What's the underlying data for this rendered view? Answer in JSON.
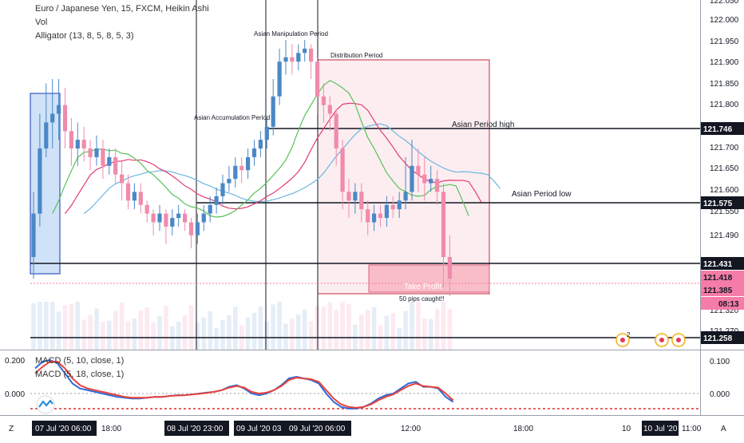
{
  "header": {
    "symbol": "Euro / Japanese Yen, 15, FXCM, Heikin Ashi",
    "vol": "Vol",
    "alligator": "Alligator (13, 8, 5, 8, 5, 3)"
  },
  "macd_legend": {
    "line1": "MACD (5, 10, close, 1)",
    "line2": "MACD (5, 18, close, 1)"
  },
  "annotations": {
    "asian_manipulation": "Asian Manipulation Period",
    "distribution": "Distribution Period",
    "asian_accumulation": "Asian Accumulation Period",
    "asian_high": "Asian Period high",
    "asian_low": "Asian Period low",
    "take_profit": "Take Profit",
    "pips": "50 pips caught!!"
  },
  "price_axis": {
    "ticks": [
      "122.050",
      "122.000",
      "121.950",
      "121.900",
      "121.850",
      "121.800",
      "121.700",
      "121.650",
      "121.600",
      "121.550",
      "121.490",
      "121.320",
      "121.270"
    ],
    "tags": [
      {
        "label": "121.746",
        "type": "dark"
      },
      {
        "label": "121.575",
        "type": "dark"
      },
      {
        "label": "121.431",
        "type": "dark"
      },
      {
        "label": "121.418",
        "type": "pink"
      },
      {
        "label": "121.385",
        "type": "pink"
      },
      {
        "label": "08:13",
        "type": "pink"
      },
      {
        "label": "121.258",
        "type": "dark"
      }
    ]
  },
  "macd_axis": {
    "left": [
      "0.200",
      "0.000"
    ],
    "right": [
      "0.100",
      "0.000"
    ]
  },
  "time_axis": {
    "left_button": "Z",
    "right_button": "A",
    "labels": [
      "18:00",
      "12:00",
      "18:00",
      "10",
      "11:00"
    ],
    "highlights": [
      "07 Jul '20  06:00",
      "08 Jul '20  23:00",
      "09 Jul '20  03",
      "09 Jul '20  06:00",
      "10 Jul '20"
    ]
  },
  "markers": {
    "badge": "2"
  },
  "colors": {
    "bull": "#4a88c6",
    "bear": "#f08bab",
    "jaw": "#6ab7e0",
    "teeth": "#e23b73",
    "lips": "#58c25a",
    "macd": "#2e6ad8",
    "signal": "#e8423a",
    "tag_dark": "#131722",
    "tag_pink": "#f47ca6"
  },
  "chart_data": {
    "type": "candlestick",
    "symbol": "EURJPY",
    "timeframe": "15",
    "style": "Heikin Ashi",
    "levels": [
      {
        "name": "Asian Period high",
        "value": 121.746
      },
      {
        "name": "Asian Period low",
        "value": 121.575
      },
      {
        "value": 121.431
      },
      {
        "value": 121.258
      }
    ],
    "current_prices": [
      121.418,
      121.385
    ],
    "countdown": "08:13",
    "candles": [
      {
        "o": 121.45,
        "c": 121.55,
        "h": 121.6,
        "l": 121.4
      },
      {
        "o": 121.55,
        "c": 121.7,
        "h": 121.78,
        "l": 121.52
      },
      {
        "o": 121.7,
        "c": 121.76,
        "h": 121.85,
        "l": 121.68
      },
      {
        "o": 121.76,
        "c": 121.78,
        "h": 121.86,
        "l": 121.7
      },
      {
        "o": 121.78,
        "c": 121.8,
        "h": 121.86,
        "l": 121.72
      },
      {
        "o": 121.8,
        "c": 121.74,
        "h": 121.84,
        "l": 121.7
      },
      {
        "o": 121.74,
        "c": 121.7,
        "h": 121.77,
        "l": 121.66
      },
      {
        "o": 121.7,
        "c": 121.72,
        "h": 121.76,
        "l": 121.66
      },
      {
        "o": 121.72,
        "c": 121.7,
        "h": 121.75,
        "l": 121.67
      },
      {
        "o": 121.7,
        "c": 121.68,
        "h": 121.72,
        "l": 121.65
      },
      {
        "o": 121.68,
        "c": 121.7,
        "h": 121.73,
        "l": 121.66
      },
      {
        "o": 121.7,
        "c": 121.66,
        "h": 121.72,
        "l": 121.63
      },
      {
        "o": 121.66,
        "c": 121.68,
        "h": 121.7,
        "l": 121.64
      },
      {
        "o": 121.68,
        "c": 121.64,
        "h": 121.7,
        "l": 121.62
      },
      {
        "o": 121.64,
        "c": 121.62,
        "h": 121.67,
        "l": 121.58
      },
      {
        "o": 121.62,
        "c": 121.58,
        "h": 121.64,
        "l": 121.56
      },
      {
        "o": 121.58,
        "c": 121.6,
        "h": 121.62,
        "l": 121.56
      },
      {
        "o": 121.6,
        "c": 121.57,
        "h": 121.62,
        "l": 121.55
      },
      {
        "o": 121.57,
        "c": 121.55,
        "h": 121.58,
        "l": 121.53
      },
      {
        "o": 121.55,
        "c": 121.53,
        "h": 121.56,
        "l": 121.5
      },
      {
        "o": 121.53,
        "c": 121.55,
        "h": 121.57,
        "l": 121.51
      },
      {
        "o": 121.55,
        "c": 121.52,
        "h": 121.56,
        "l": 121.48
      },
      {
        "o": 121.52,
        "c": 121.54,
        "h": 121.56,
        "l": 121.5
      },
      {
        "o": 121.54,
        "c": 121.55,
        "h": 121.57,
        "l": 121.52
      },
      {
        "o": 121.55,
        "c": 121.53,
        "h": 121.56,
        "l": 121.51
      },
      {
        "o": 121.53,
        "c": 121.5,
        "h": 121.54,
        "l": 121.47
      },
      {
        "o": 121.5,
        "c": 121.53,
        "h": 121.55,
        "l": 121.48
      },
      {
        "o": 121.53,
        "c": 121.55,
        "h": 121.57,
        "l": 121.51
      },
      {
        "o": 121.55,
        "c": 121.57,
        "h": 121.59,
        "l": 121.53
      },
      {
        "o": 121.57,
        "c": 121.59,
        "h": 121.61,
        "l": 121.55
      },
      {
        "o": 121.59,
        "c": 121.62,
        "h": 121.64,
        "l": 121.57
      },
      {
        "o": 121.62,
        "c": 121.63,
        "h": 121.66,
        "l": 121.6
      },
      {
        "o": 121.63,
        "c": 121.66,
        "h": 121.68,
        "l": 121.61
      },
      {
        "o": 121.66,
        "c": 121.65,
        "h": 121.68,
        "l": 121.62
      },
      {
        "o": 121.65,
        "c": 121.68,
        "h": 121.7,
        "l": 121.63
      },
      {
        "o": 121.68,
        "c": 121.7,
        "h": 121.72,
        "l": 121.66
      },
      {
        "o": 121.7,
        "c": 121.72,
        "h": 121.74,
        "l": 121.68
      },
      {
        "o": 121.72,
        "c": 121.75,
        "h": 121.77,
        "l": 121.7
      },
      {
        "o": 121.75,
        "c": 121.82,
        "h": 121.86,
        "l": 121.73
      },
      {
        "o": 121.82,
        "c": 121.9,
        "h": 121.93,
        "l": 121.8
      },
      {
        "o": 121.9,
        "c": 121.91,
        "h": 121.95,
        "l": 121.87
      },
      {
        "o": 121.91,
        "c": 121.9,
        "h": 121.94,
        "l": 121.87
      },
      {
        "o": 121.9,
        "c": 121.92,
        "h": 121.94,
        "l": 121.88
      },
      {
        "o": 121.92,
        "c": 121.93,
        "h": 121.95,
        "l": 121.9
      },
      {
        "o": 121.93,
        "c": 121.9,
        "h": 121.94,
        "l": 121.86
      },
      {
        "o": 121.9,
        "c": 121.82,
        "h": 121.91,
        "l": 121.78
      },
      {
        "o": 121.82,
        "c": 121.8,
        "h": 121.85,
        "l": 121.76
      },
      {
        "o": 121.8,
        "c": 121.78,
        "h": 121.82,
        "l": 121.74
      },
      {
        "o": 121.78,
        "c": 121.7,
        "h": 121.79,
        "l": 121.66
      },
      {
        "o": 121.7,
        "c": 121.6,
        "h": 121.72,
        "l": 121.56
      },
      {
        "o": 121.6,
        "c": 121.58,
        "h": 121.63,
        "l": 121.54
      },
      {
        "o": 121.58,
        "c": 121.6,
        "h": 121.62,
        "l": 121.55
      },
      {
        "o": 121.6,
        "c": 121.56,
        "h": 121.62,
        "l": 121.53
      },
      {
        "o": 121.56,
        "c": 121.53,
        "h": 121.58,
        "l": 121.5
      },
      {
        "o": 121.53,
        "c": 121.55,
        "h": 121.57,
        "l": 121.51
      },
      {
        "o": 121.55,
        "c": 121.54,
        "h": 121.57,
        "l": 121.52
      },
      {
        "o": 121.54,
        "c": 121.57,
        "h": 121.59,
        "l": 121.52
      },
      {
        "o": 121.57,
        "c": 121.56,
        "h": 121.59,
        "l": 121.54
      },
      {
        "o": 121.56,
        "c": 121.58,
        "h": 121.6,
        "l": 121.54
      },
      {
        "o": 121.58,
        "c": 121.6,
        "h": 121.68,
        "l": 121.56
      },
      {
        "o": 121.6,
        "c": 121.66,
        "h": 121.72,
        "l": 121.58
      },
      {
        "o": 121.66,
        "c": 121.64,
        "h": 121.7,
        "l": 121.6
      },
      {
        "o": 121.64,
        "c": 121.62,
        "h": 121.68,
        "l": 121.58
      },
      {
        "o": 121.62,
        "c": 121.63,
        "h": 121.66,
        "l": 121.6
      },
      {
        "o": 121.63,
        "c": 121.6,
        "h": 121.65,
        "l": 121.57
      },
      {
        "o": 121.6,
        "c": 121.45,
        "h": 121.62,
        "l": 121.38
      },
      {
        "o": 121.45,
        "c": 121.4,
        "h": 121.5,
        "l": 121.36
      }
    ],
    "macd_series": [
      {
        "name": "MACD (5, 10, close, 1)",
        "values": [
          0.15,
          0.19,
          0.2,
          0.18,
          0.12,
          0.06,
          0.03,
          0.02,
          0.01,
          0.0,
          -0.01,
          -0.02,
          -0.025,
          -0.03,
          -0.03,
          -0.025,
          -0.02,
          -0.02,
          -0.015,
          -0.01,
          -0.01,
          -0.005,
          0.0,
          0.005,
          0.01,
          0.02,
          0.04,
          0.05,
          0.03,
          0.0,
          -0.01,
          0.0,
          0.02,
          0.05,
          0.09,
          0.1,
          0.09,
          0.08,
          0.06,
          0.0,
          -0.05,
          -0.08,
          -0.09,
          -0.09,
          -0.08,
          -0.06,
          -0.03,
          -0.01,
          0.0,
          0.03,
          0.06,
          0.07,
          0.04,
          0.04,
          0.03,
          -0.02,
          -0.05
        ]
      },
      {
        "name": "MACD (5, 18, close, 1)",
        "values": [
          0.12,
          0.16,
          0.19,
          0.19,
          0.15,
          0.09,
          0.05,
          0.03,
          0.02,
          0.01,
          0.0,
          -0.01,
          -0.02,
          -0.025,
          -0.025,
          -0.025,
          -0.02,
          -0.02,
          -0.015,
          -0.012,
          -0.01,
          -0.006,
          -0.002,
          0.004,
          0.01,
          0.02,
          0.035,
          0.045,
          0.035,
          0.01,
          0.0,
          0.005,
          0.02,
          0.045,
          0.08,
          0.095,
          0.09,
          0.085,
          0.07,
          0.02,
          -0.03,
          -0.065,
          -0.08,
          -0.085,
          -0.08,
          -0.065,
          -0.04,
          -0.02,
          -0.005,
          0.02,
          0.045,
          0.06,
          0.045,
          0.04,
          0.035,
          0.0,
          -0.04
        ]
      }
    ]
  }
}
